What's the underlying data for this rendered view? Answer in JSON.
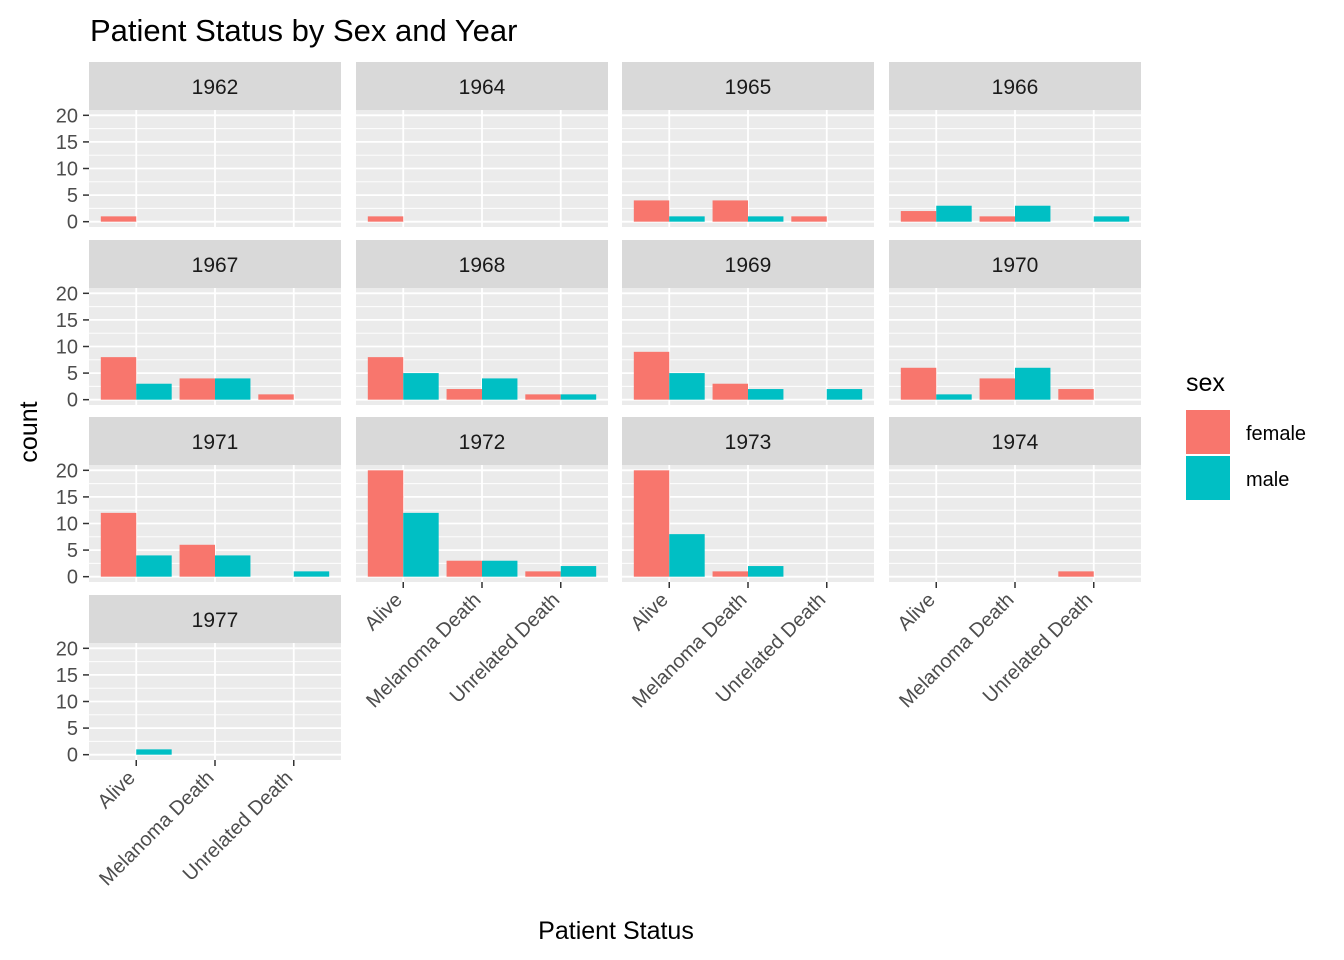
{
  "chart_data": {
    "type": "bar",
    "title": "Patient Status by Sex and Year",
    "xlabel": "Patient Status",
    "ylabel": "count",
    "categories": [
      "Alive",
      "Melanoma Death",
      "Unrelated Death"
    ],
    "ylim": [
      0,
      20
    ],
    "yticks": [
      0,
      5,
      10,
      15,
      20
    ],
    "legend": {
      "title": "sex",
      "position": "right",
      "entries": [
        {
          "label": "female",
          "color": "#F8766D"
        },
        {
          "label": "male",
          "color": "#00BFC4"
        }
      ]
    },
    "colors": {
      "female": "#F8766D",
      "male": "#00BFC4",
      "panel_background": "#EBEBEB",
      "strip_background": "#D9D9D9",
      "grid_major": "#FFFFFF"
    },
    "facets": [
      {
        "year": "1962",
        "bars": {
          "Alive": {
            "female": 1,
            "male": 0
          },
          "Melanoma Death": {
            "female": 0,
            "male": 0
          },
          "Unrelated Death": {
            "female": 0,
            "male": 0
          }
        }
      },
      {
        "year": "1964",
        "bars": {
          "Alive": {
            "female": 1,
            "male": 0
          },
          "Melanoma Death": {
            "female": 0,
            "male": 0
          },
          "Unrelated Death": {
            "female": 0,
            "male": 0
          }
        }
      },
      {
        "year": "1965",
        "bars": {
          "Alive": {
            "female": 4,
            "male": 1
          },
          "Melanoma Death": {
            "female": 4,
            "male": 1
          },
          "Unrelated Death": {
            "female": 1,
            "male": 0
          }
        }
      },
      {
        "year": "1966",
        "bars": {
          "Alive": {
            "female": 2,
            "male": 3
          },
          "Melanoma Death": {
            "female": 1,
            "male": 3
          },
          "Unrelated Death": {
            "female": 0,
            "male": 1
          }
        }
      },
      {
        "year": "1967",
        "bars": {
          "Alive": {
            "female": 8,
            "male": 3
          },
          "Melanoma Death": {
            "female": 4,
            "male": 4
          },
          "Unrelated Death": {
            "female": 1,
            "male": 0
          }
        }
      },
      {
        "year": "1968",
        "bars": {
          "Alive": {
            "female": 8,
            "male": 5
          },
          "Melanoma Death": {
            "female": 2,
            "male": 4
          },
          "Unrelated Death": {
            "female": 1,
            "male": 1
          }
        }
      },
      {
        "year": "1969",
        "bars": {
          "Alive": {
            "female": 9,
            "male": 5
          },
          "Melanoma Death": {
            "female": 3,
            "male": 2
          },
          "Unrelated Death": {
            "female": 0,
            "male": 2
          }
        }
      },
      {
        "year": "1970",
        "bars": {
          "Alive": {
            "female": 6,
            "male": 1
          },
          "Melanoma Death": {
            "female": 4,
            "male": 6
          },
          "Unrelated Death": {
            "female": 2,
            "male": 0
          }
        }
      },
      {
        "year": "1971",
        "bars": {
          "Alive": {
            "female": 12,
            "male": 4
          },
          "Melanoma Death": {
            "female": 6,
            "male": 4
          },
          "Unrelated Death": {
            "female": 0,
            "male": 1
          }
        }
      },
      {
        "year": "1972",
        "bars": {
          "Alive": {
            "female": 20,
            "male": 12
          },
          "Melanoma Death": {
            "female": 3,
            "male": 3
          },
          "Unrelated Death": {
            "female": 1,
            "male": 2
          }
        }
      },
      {
        "year": "1973",
        "bars": {
          "Alive": {
            "female": 20,
            "male": 8
          },
          "Melanoma Death": {
            "female": 1,
            "male": 2
          },
          "Unrelated Death": {
            "female": 0,
            "male": 0
          }
        }
      },
      {
        "year": "1974",
        "bars": {
          "Alive": {
            "female": 0,
            "male": 0
          },
          "Melanoma Death": {
            "female": 0,
            "male": 0
          },
          "Unrelated Death": {
            "female": 1,
            "male": 0
          }
        }
      },
      {
        "year": "1977",
        "bars": {
          "Alive": {
            "female": 0,
            "male": 1
          },
          "Melanoma Death": {
            "female": 0,
            "male": 0
          },
          "Unrelated Death": {
            "female": 0,
            "male": 0
          }
        }
      }
    ]
  }
}
